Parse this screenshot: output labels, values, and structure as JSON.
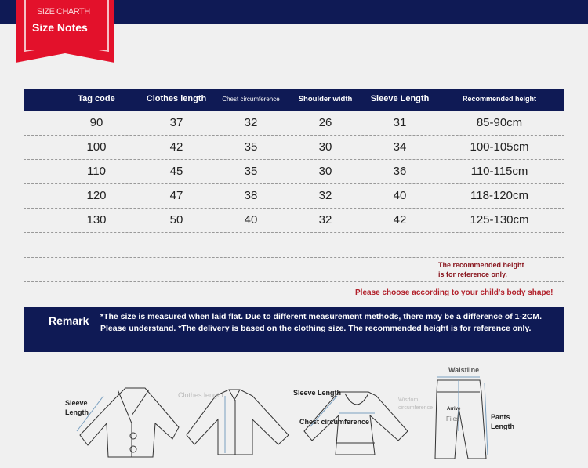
{
  "banner": {
    "line1": "SIZE CHARTH",
    "line2": "Size Notes"
  },
  "table": {
    "headers": [
      "Tag code",
      "Clothes length",
      "Chest circumference",
      "Shoulder width",
      "Sleeve Length",
      "Recommended height"
    ],
    "rows": [
      [
        "90",
        "37",
        "32",
        "26",
        "31",
        "85-90cm"
      ],
      [
        "100",
        "42",
        "35",
        "30",
        "34",
        "100-105cm"
      ],
      [
        "110",
        "45",
        "35",
        "30",
        "36",
        "110-115cm"
      ],
      [
        "120",
        "47",
        "38",
        "32",
        "40",
        "118-120cm"
      ],
      [
        "130",
        "50",
        "40",
        "32",
        "42",
        "125-130cm"
      ]
    ]
  },
  "notes": {
    "reference_line1": "The recommended height",
    "reference_line2": "is for reference only.",
    "choose": "Please choose according to your child's body shape!"
  },
  "remark": {
    "label": "Remark",
    "text": "*The size is measured when laid flat. Due to different measurement methods, there may be a difference of 1-2CM. Please understand. *The delivery is based on the clothing size. The recommended height is for reference only."
  },
  "diagram": {
    "sleeve_length_1": "Sleeve Length",
    "clothes_length": "Clothes length",
    "sleeve_length_2": "Sleeve Length",
    "chest": "Chest circumference",
    "waist_circ": "Wisdom circumference",
    "arrive": "Arrive",
    "files": "Files",
    "waistline": "Waistline",
    "pants_length": "Pants Length"
  }
}
